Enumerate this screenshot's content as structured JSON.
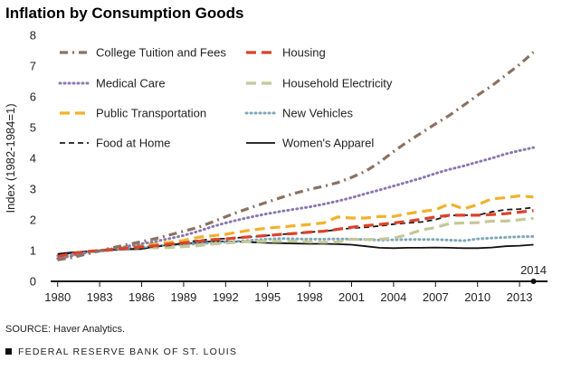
{
  "title": "Inflation by Consumption Goods",
  "source": "SOURCE: Haver Analytics.",
  "footer": "FEDERAL RESERVE BANK OF ST. LOUIS",
  "chart_data": {
    "type": "line",
    "ylabel": "Index (1982-1984=1)",
    "xlabel": "",
    "xlim": [
      1979.5,
      2015
    ],
    "ylim": [
      0,
      8
    ],
    "x_ticks": [
      "1980",
      "1983",
      "1986",
      "1989",
      "1992",
      "1995",
      "1998",
      "2001",
      "2004",
      "2007",
      "2010",
      "2013"
    ],
    "y_ticks": [
      "0",
      "1",
      "2",
      "3",
      "4",
      "5",
      "6",
      "7",
      "8"
    ],
    "grid": false,
    "legend_placement": "top-left, two columns",
    "annotation": {
      "text": "2014",
      "x": 2014,
      "y": 0
    },
    "series": [
      {
        "name": "College Tuition and Fees",
        "color": "#8a7262",
        "style": "dash-dot",
        "x": [
          1980,
          1981,
          1982,
          1983,
          1984,
          1985,
          1986,
          1987,
          1988,
          1989,
          1990,
          1991,
          1992,
          1993,
          1994,
          1995,
          1996,
          1997,
          1998,
          1999,
          2000,
          2001,
          2002,
          2003,
          2004,
          2005,
          2006,
          2007,
          2008,
          2009,
          2010,
          2011,
          2012,
          2013,
          2014
        ],
        "y": [
          0.7,
          0.77,
          0.88,
          0.99,
          1.1,
          1.2,
          1.29,
          1.39,
          1.51,
          1.63,
          1.75,
          1.92,
          2.1,
          2.27,
          2.43,
          2.58,
          2.73,
          2.87,
          2.99,
          3.09,
          3.21,
          3.38,
          3.58,
          3.87,
          4.22,
          4.54,
          4.83,
          5.12,
          5.4,
          5.72,
          6.05,
          6.35,
          6.7,
          7.05,
          7.45
        ]
      },
      {
        "name": "Housing",
        "color": "#d9432c",
        "style": "dash",
        "x": [
          1980,
          1981,
          1982,
          1983,
          1984,
          1985,
          1986,
          1987,
          1988,
          1989,
          1990,
          1991,
          1992,
          1993,
          1994,
          1995,
          1996,
          1997,
          1998,
          1999,
          2000,
          2001,
          2002,
          2003,
          2004,
          2005,
          2006,
          2007,
          2008,
          2009,
          2010,
          2011,
          2012,
          2013,
          2014
        ],
        "y": [
          0.81,
          0.9,
          0.97,
          1.0,
          1.03,
          1.08,
          1.12,
          1.16,
          1.21,
          1.25,
          1.3,
          1.35,
          1.38,
          1.42,
          1.46,
          1.49,
          1.53,
          1.56,
          1.6,
          1.63,
          1.69,
          1.76,
          1.81,
          1.85,
          1.9,
          1.95,
          2.02,
          2.09,
          2.15,
          2.15,
          2.15,
          2.17,
          2.2,
          2.25,
          2.3
        ]
      },
      {
        "name": "Medical Care",
        "color": "#8b78b0",
        "style": "dotted",
        "x": [
          1980,
          1981,
          1982,
          1983,
          1984,
          1985,
          1986,
          1987,
          1988,
          1989,
          1990,
          1991,
          1992,
          1993,
          1994,
          1995,
          1996,
          1997,
          1998,
          1999,
          2000,
          2001,
          2002,
          2003,
          2004,
          2005,
          2006,
          2007,
          2008,
          2009,
          2010,
          2011,
          2012,
          2013,
          2014
        ],
        "y": [
          0.74,
          0.83,
          0.93,
          1.0,
          1.06,
          1.14,
          1.22,
          1.3,
          1.39,
          1.49,
          1.62,
          1.77,
          1.9,
          2.01,
          2.11,
          2.2,
          2.28,
          2.35,
          2.42,
          2.51,
          2.61,
          2.72,
          2.85,
          2.97,
          3.1,
          3.23,
          3.36,
          3.51,
          3.64,
          3.75,
          3.88,
          4.0,
          4.14,
          4.25,
          4.35
        ]
      },
      {
        "name": "Household Electricity",
        "color": "#c5c79a",
        "style": "dash",
        "x": [
          1980,
          1981,
          1982,
          1983,
          1984,
          1985,
          1986,
          1987,
          1988,
          1989,
          1990,
          1991,
          1992,
          1993,
          1994,
          1995,
          1996,
          1997,
          1998,
          1999,
          2000,
          2001,
          2002,
          2003,
          2004,
          2005,
          2006,
          2007,
          2008,
          2009,
          2010,
          2011,
          2012,
          2013,
          2014
        ],
        "y": [
          0.76,
          0.87,
          0.95,
          1.0,
          1.04,
          1.08,
          1.1,
          1.09,
          1.1,
          1.13,
          1.16,
          1.21,
          1.24,
          1.28,
          1.29,
          1.3,
          1.3,
          1.31,
          1.28,
          1.27,
          1.28,
          1.37,
          1.36,
          1.37,
          1.4,
          1.52,
          1.67,
          1.75,
          1.88,
          1.9,
          1.91,
          1.96,
          1.96,
          2.0,
          2.05
        ]
      },
      {
        "name": "Public Transportation",
        "color": "#f1b12c",
        "style": "dash",
        "x": [
          1980,
          1981,
          1982,
          1983,
          1984,
          1985,
          1986,
          1987,
          1988,
          1989,
          1990,
          1991,
          1992,
          1993,
          1994,
          1995,
          1996,
          1997,
          1998,
          1999,
          2000,
          2001,
          2002,
          2003,
          2004,
          2005,
          2006,
          2007,
          2008,
          2009,
          2010,
          2011,
          2012,
          2013,
          2014
        ],
        "y": [
          0.69,
          0.85,
          0.95,
          1.0,
          1.06,
          1.11,
          1.17,
          1.22,
          1.27,
          1.33,
          1.43,
          1.48,
          1.53,
          1.61,
          1.68,
          1.73,
          1.77,
          1.81,
          1.85,
          1.9,
          2.09,
          2.06,
          2.06,
          2.11,
          2.11,
          2.2,
          2.27,
          2.33,
          2.52,
          2.36,
          2.49,
          2.68,
          2.72,
          2.78,
          2.74
        ]
      },
      {
        "name": "New Vehicles",
        "color": "#7fa8b8",
        "style": "dotted",
        "x": [
          1980,
          1981,
          1982,
          1983,
          1984,
          1985,
          1986,
          1987,
          1988,
          1989,
          1990,
          1991,
          1992,
          1993,
          1994,
          1995,
          1996,
          1997,
          1998,
          1999,
          2000,
          2001,
          2002,
          2003,
          2004,
          2005,
          2006,
          2007,
          2008,
          2009,
          2010,
          2011,
          2012,
          2013,
          2014
        ],
        "y": [
          0.83,
          0.89,
          0.94,
          0.98,
          1.02,
          1.06,
          1.11,
          1.15,
          1.18,
          1.2,
          1.22,
          1.25,
          1.28,
          1.31,
          1.34,
          1.37,
          1.39,
          1.38,
          1.37,
          1.37,
          1.38,
          1.37,
          1.36,
          1.34,
          1.35,
          1.36,
          1.36,
          1.36,
          1.34,
          1.32,
          1.38,
          1.41,
          1.43,
          1.45,
          1.46
        ]
      },
      {
        "name": "Food at Home",
        "color": "#1a1a1a",
        "style": "dash",
        "x": [
          1980,
          1981,
          1982,
          1983,
          1984,
          1985,
          1986,
          1987,
          1988,
          1989,
          1990,
          1991,
          1992,
          1993,
          1994,
          1995,
          1996,
          1997,
          1998,
          1999,
          2000,
          2001,
          2002,
          2003,
          2004,
          2005,
          2006,
          2007,
          2008,
          2009,
          2010,
          2011,
          2012,
          2013,
          2014
        ],
        "y": [
          0.85,
          0.93,
          0.97,
          0.99,
          1.03,
          1.04,
          1.08,
          1.13,
          1.17,
          1.25,
          1.33,
          1.37,
          1.39,
          1.42,
          1.45,
          1.49,
          1.53,
          1.56,
          1.6,
          1.63,
          1.68,
          1.73,
          1.76,
          1.8,
          1.86,
          1.9,
          1.93,
          2.01,
          2.14,
          2.15,
          2.15,
          2.26,
          2.33,
          2.35,
          2.4
        ]
      },
      {
        "name": "Women's Apparel",
        "color": "#111111",
        "style": "solid",
        "x": [
          1980,
          1981,
          1982,
          1983,
          1984,
          1985,
          1986,
          1987,
          1988,
          1989,
          1990,
          1991,
          1992,
          1993,
          1994,
          1995,
          1996,
          1997,
          1998,
          1999,
          2000,
          2001,
          2002,
          2003,
          2004,
          2005,
          2006,
          2007,
          2008,
          2009,
          2010,
          2011,
          2012,
          2013,
          2014
        ],
        "y": [
          0.89,
          0.94,
          0.97,
          1.0,
          1.03,
          1.04,
          1.05,
          1.13,
          1.19,
          1.21,
          1.26,
          1.3,
          1.3,
          1.29,
          1.27,
          1.25,
          1.24,
          1.23,
          1.22,
          1.22,
          1.21,
          1.19,
          1.14,
          1.09,
          1.08,
          1.09,
          1.09,
          1.1,
          1.09,
          1.08,
          1.08,
          1.1,
          1.14,
          1.16,
          1.19
        ]
      }
    ]
  }
}
